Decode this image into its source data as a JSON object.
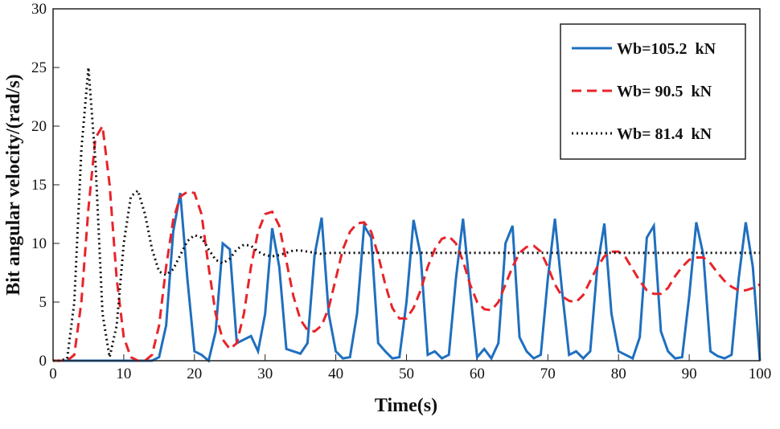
{
  "chart_data": {
    "type": "line",
    "xlabel": "Time(s)",
    "ylabel": "Bit angular velocity/(rad/s)",
    "xlim": [
      0,
      100
    ],
    "ylim": [
      0,
      30
    ],
    "xticks": [
      0,
      10,
      20,
      30,
      40,
      50,
      60,
      70,
      80,
      90,
      100
    ],
    "yticks": [
      0,
      5,
      10,
      15,
      20,
      25,
      30
    ],
    "grid": false,
    "legend": "upper right",
    "x": [
      0,
      1,
      2,
      3,
      4,
      5,
      6,
      7,
      8,
      9,
      10,
      11,
      12,
      13,
      14,
      15,
      16,
      17,
      18,
      19,
      20,
      21,
      22,
      23,
      24,
      25,
      26,
      27,
      28,
      29,
      30,
      31,
      32,
      33,
      34,
      35,
      36,
      37,
      38,
      39,
      40,
      41,
      42,
      43,
      44,
      45,
      46,
      47,
      48,
      49,
      50,
      51,
      52,
      53,
      54,
      55,
      56,
      57,
      58,
      59,
      60,
      61,
      62,
      63,
      64,
      65,
      66,
      67,
      68,
      69,
      70,
      71,
      72,
      73,
      74,
      75,
      76,
      77,
      78,
      79,
      80,
      81,
      82,
      83,
      84,
      85,
      86,
      87,
      88,
      89,
      90,
      91,
      92,
      93,
      94,
      95,
      96,
      97,
      98,
      99,
      100
    ],
    "series": [
      {
        "name": "Wb=105.2  kN",
        "color": "#1f6fbf",
        "dash": "solid",
        "values": [
          0,
          0,
          0,
          0,
          0,
          0,
          0,
          0,
          0,
          0,
          0,
          0,
          0,
          0,
          0,
          0.3,
          3,
          11,
          14.3,
          7,
          0.8,
          0.5,
          0,
          2.5,
          10,
          9.5,
          1.5,
          1.8,
          2.1,
          0.8,
          4,
          11.3,
          8,
          1,
          0.8,
          0.6,
          1.5,
          9,
          12.2,
          4,
          0.8,
          0.2,
          0.3,
          4,
          11.5,
          10.5,
          1.5,
          0.8,
          0.2,
          0.3,
          5,
          12,
          9,
          0.5,
          0.8,
          0.2,
          0.5,
          7,
          12.1,
          6,
          0.3,
          1,
          0.2,
          1.5,
          10,
          11.5,
          2,
          0.8,
          0.2,
          0.5,
          7,
          12.1,
          6,
          0.5,
          0.8,
          0.2,
          0.8,
          8,
          11.7,
          4,
          0.8,
          0.5,
          0.2,
          2,
          10.5,
          11.5,
          2.5,
          0.8,
          0.2,
          0.3,
          5.5,
          11.8,
          9,
          0.8,
          0.4,
          0.2,
          0.5,
          7,
          11.8,
          8,
          0
        ]
      },
      {
        "name": "Wb= 90.5  kN",
        "color": "#e8242a",
        "dash": "dashed",
        "values": [
          0,
          0,
          0,
          0.5,
          5,
          13,
          19,
          20,
          15,
          7,
          2,
          0.3,
          0,
          0,
          0.5,
          3,
          8,
          12,
          14,
          14.4,
          14.3,
          12.5,
          8,
          4,
          1.8,
          1,
          1.5,
          4,
          8,
          11,
          12.5,
          12.7,
          11.5,
          8.5,
          5.5,
          3.5,
          2.6,
          2.5,
          3,
          4.5,
          7,
          9.5,
          11,
          11.7,
          11.8,
          11,
          9,
          6.5,
          4.5,
          3.6,
          3.6,
          4.5,
          6,
          8,
          9.5,
          10.4,
          10.6,
          10,
          8.5,
          6.5,
          5,
          4.4,
          4.3,
          5,
          6.5,
          8,
          9.2,
          9.7,
          9.8,
          9.3,
          8,
          6.5,
          5.5,
          5.1,
          5,
          5.6,
          6.8,
          8,
          8.9,
          9.3,
          9.3,
          8.8,
          7.8,
          6.8,
          6,
          5.7,
          5.7,
          6.2,
          7.2,
          8,
          8.6,
          8.8,
          8.8,
          8.3,
          7.5,
          6.8,
          6.3,
          6,
          6,
          6.2,
          6.5
        ]
      },
      {
        "name": "Wb= 81.4  kN",
        "color": "#111111",
        "dash": "dotted",
        "values": [
          0,
          0,
          0.2,
          5,
          18,
          25,
          17,
          4,
          0.3,
          3,
          10,
          14,
          14.5,
          12.5,
          9.5,
          7.6,
          7.3,
          7.8,
          9,
          10.2,
          10.7,
          10.5,
          9.5,
          8.6,
          8.3,
          8.7,
          9.5,
          9.9,
          9.8,
          9.3,
          9,
          8.9,
          9,
          9.2,
          9.4,
          9.4,
          9.3,
          9.2,
          9.1,
          9.2,
          9.2,
          9.2,
          9.2,
          9.2,
          9.2,
          9.2,
          9.2,
          9.2,
          9.2,
          9.2,
          9.2,
          9.2,
          9.2,
          9.2,
          9.2,
          9.2,
          9.2,
          9.2,
          9.2,
          9.2,
          9.2,
          9.2,
          9.2,
          9.2,
          9.2,
          9.2,
          9.2,
          9.2,
          9.2,
          9.2,
          9.2,
          9.2,
          9.2,
          9.2,
          9.2,
          9.2,
          9.2,
          9.2,
          9.2,
          9.2,
          9.2,
          9.2,
          9.2,
          9.2,
          9.2,
          9.2,
          9.2,
          9.2,
          9.2,
          9.2,
          9.2,
          9.2,
          9.2,
          9.2,
          9.2,
          9.2,
          9.2,
          9.2,
          9.2,
          9.2,
          9.2
        ]
      }
    ]
  }
}
